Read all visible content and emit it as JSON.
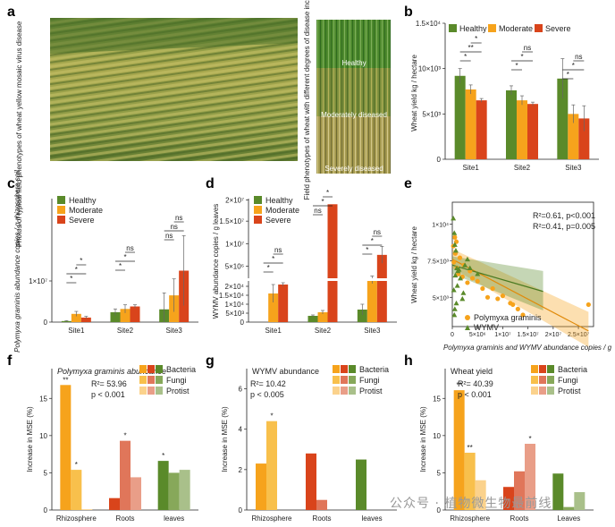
{
  "panel_labels": {
    "a": "a",
    "b": "b",
    "c": "c",
    "d": "d",
    "e": "e",
    "f": "f",
    "g": "g",
    "h": "h"
  },
  "panel_a": {
    "photo_caption": "Photos of typical field phenotypes of wheat yellow mosaic virus disease",
    "field_caption": "Field phenotypes of wheat with different degrees of disease incidence",
    "tags": [
      "Healthy",
      "Moderately diseased",
      "Severely diseased"
    ]
  },
  "colors": {
    "healthy": "#5a8a2a",
    "moderate": "#f6a31c",
    "severe": "#d9441b",
    "bacteria": [
      "#f6a31c",
      "#d9441b",
      "#5a8a2a"
    ],
    "fungi": [
      "#f8c04c",
      "#e0765a",
      "#87a85a"
    ],
    "protist": [
      "#fbd28c",
      "#e99e88",
      "#a9c08a"
    ],
    "pg_point": "#f6a31c",
    "wymv_point": "#5a8a2a"
  },
  "chart_data": [
    {
      "id": "b",
      "type": "bar",
      "categories": [
        "Site1",
        "Site2",
        "Site3"
      ],
      "series": [
        {
          "name": "Healthy",
          "values": [
            9.2,
            7.6,
            8.9
          ],
          "err": [
            0.8,
            0.5,
            2.2
          ]
        },
        {
          "name": "Moderate",
          "values": [
            7.7,
            6.5,
            5.0
          ],
          "err": [
            0.5,
            0.5,
            1.0
          ]
        },
        {
          "name": "Severe",
          "values": [
            6.5,
            6.1,
            4.5
          ],
          "err": [
            0.2,
            0.2,
            1.4
          ]
        }
      ],
      "ylabel": "Wheat yield kg / hectare",
      "yticks": [
        "0",
        "5×10³",
        "10×10³",
        "1.5×10⁴"
      ],
      "ylim": [
        0,
        15
      ],
      "sig": [
        {
          "site": 0,
          "pairs": [
            [
              "*"
            ],
            [
              "**"
            ],
            [
              "*"
            ]
          ]
        },
        {
          "site": 1,
          "pairs": [
            [
              "*"
            ],
            [
              "*"
            ],
            [
              "ns"
            ]
          ]
        },
        {
          "site": 2,
          "pairs": [
            [
              "*"
            ],
            [
              "*"
            ],
            [
              "ns"
            ]
          ]
        }
      ],
      "sig_labels": {
        "s1": [
          "*",
          "**",
          "*"
        ],
        "s2": [
          "*",
          "*",
          "ns"
        ],
        "s3": [
          "*",
          "*",
          "ns"
        ]
      }
    },
    {
      "id": "c",
      "type": "bar",
      "categories": [
        "Site1",
        "Site2",
        "Site3"
      ],
      "series": [
        {
          "name": "Healthy",
          "values": [
            0.25,
            2.4,
            3.1
          ],
          "err": [
            0.1,
            0.8,
            4.0
          ]
        },
        {
          "name": "Moderate",
          "values": [
            2.0,
            3.2,
            6.5
          ],
          "err": [
            0.6,
            1.0,
            4.0
          ]
        },
        {
          "name": "Severe",
          "values": [
            1.1,
            3.8,
            12.5
          ],
          "err": [
            0.3,
            0.4,
            8.5
          ]
        }
      ],
      "ylabel": "Polymyxa graminis abundance copies / g rhizosphere soil",
      "yticks": [
        "0",
        "1×10⁷"
      ],
      "ylim": [
        0,
        30
      ],
      "sig_labels": {
        "s1": [
          "*",
          "*",
          "*"
        ],
        "s2": [
          "*",
          "*",
          "ns"
        ],
        "s3": [
          "ns",
          "ns",
          "ns"
        ]
      }
    },
    {
      "id": "d",
      "type": "bar",
      "broken_axis": true,
      "categories": [
        "Site1",
        "Site2",
        "Site3"
      ],
      "series": [
        {
          "name": "Healthy",
          "values": [
            0,
            0.35,
            0.7
          ],
          "err": [
            0,
            0.05,
            0.3
          ]
        },
        {
          "name": "Moderate",
          "values": [
            1.6,
            0.55,
            2.3
          ],
          "err": [
            0.5,
            0.1,
            0.15
          ]
        },
        {
          "name": "Severe",
          "values": [
            2.1,
            5.0,
            3.2
          ],
          "err": [
            0.1,
            0.0,
            0.3
          ]
        }
      ],
      "ylabel": "WYMV abundance copies / g leaves",
      "yticks": [
        "0",
        "5×10³",
        "1×10⁴",
        "1.5×10⁴",
        "2×10⁴",
        "5×10⁶",
        "1×10⁷",
        "1.5×10⁷",
        "2×10⁷"
      ],
      "sig_labels": {
        "s1": [
          "*",
          "*",
          "ns"
        ],
        "s2": [
          "ns",
          "*",
          "*"
        ],
        "s3": [
          "*",
          "*",
          "ns"
        ]
      }
    },
    {
      "id": "e",
      "type": "scatter",
      "xlabel": "Polymyxa graminis and WYMV abundance copies / g",
      "ylabel": "Wheat yield kg / hectare",
      "xticks": [
        "0",
        "5×10⁶",
        "1×10⁷",
        "1.5×10⁷",
        "2×10⁷",
        "2.5×10⁷"
      ],
      "yticks": [
        "5×10³",
        "7.5×10³",
        "1×10⁴"
      ],
      "xlim": [
        0,
        28
      ],
      "ylim": [
        3.0,
        11.5
      ],
      "stats": [
        "R²=0.61, p<0.001",
        "R²=0.41, p=0.005"
      ],
      "series": [
        {
          "name": "Polymyxa graminis",
          "points": [
            [
              0.3,
              7.4
            ],
            [
              0.6,
              8.0
            ],
            [
              0.9,
              7.0
            ],
            [
              1.2,
              6.6
            ],
            [
              1.5,
              7.7
            ],
            [
              2.0,
              6.4
            ],
            [
              2.3,
              7.2
            ],
            [
              3.0,
              6.0
            ],
            [
              3.5,
              6.8
            ],
            [
              4.0,
              6.3
            ],
            [
              5.0,
              6.1
            ],
            [
              6.0,
              5.6
            ],
            [
              7.0,
              5.0
            ],
            [
              8.0,
              5.6
            ],
            [
              9.0,
              4.9
            ],
            [
              10.0,
              5.1
            ],
            [
              11.5,
              4.6
            ],
            [
              12.0,
              4.5
            ],
            [
              13.0,
              4.2
            ],
            [
              14.0,
              3.8
            ],
            [
              0.5,
              9.1
            ],
            [
              0.2,
              8.5
            ],
            [
              0.8,
              8.8
            ],
            [
              27.0,
              4.5
            ]
          ],
          "fit": [
            [
              0,
              7.6
            ],
            [
              27,
              2.7
            ]
          ]
        },
        {
          "name": "WYMV",
          "points": [
            [
              0.2,
              10.4
            ],
            [
              0.4,
              9.4
            ],
            [
              0.5,
              8.6
            ],
            [
              0.7,
              8.2
            ],
            [
              0.9,
              7.0
            ],
            [
              1.1,
              6.8
            ],
            [
              0.6,
              6.5
            ],
            [
              1.3,
              6.9
            ],
            [
              0.3,
              5.5
            ],
            [
              0.5,
              4.2
            ],
            [
              0.8,
              4.6
            ],
            [
              1.0,
              5.8
            ],
            [
              2.0,
              4.9
            ],
            [
              2.5,
              7.2
            ],
            [
              3.0,
              7.6
            ],
            [
              3.5,
              7.0
            ],
            [
              5.0,
              6.6
            ],
            [
              0.4,
              3.8
            ],
            [
              1.6,
              6.3
            ],
            [
              2.2,
              5.3
            ]
          ],
          "fit": [
            [
              0,
              7.2
            ],
            [
              18,
              5.4
            ]
          ]
        }
      ]
    },
    {
      "id": "f",
      "type": "bar",
      "title": "Polymyxa graminis abuncance",
      "categories": [
        "Rhizosphere",
        "Roots",
        "leaves"
      ],
      "series": [
        {
          "name": "Bacteria",
          "values": [
            16.8,
            1.6,
            6.6
          ]
        },
        {
          "name": "Fungi",
          "values": [
            5.4,
            9.3,
            5.0
          ]
        },
        {
          "name": "Protist",
          "values": [
            0.1,
            4.4,
            5.4
          ]
        }
      ],
      "ylabel": "Increase in MSE (%)",
      "yticks": [
        "0",
        "5",
        "10",
        "15"
      ],
      "ylim": [
        0,
        19
      ],
      "stats": [
        "R²= 53.96",
        "p  < 0.001"
      ],
      "stars": [
        [
          "**",
          0,
          0
        ],
        [
          "*",
          0,
          1
        ],
        [
          "*",
          1,
          1
        ],
        [
          "*",
          2,
          0
        ]
      ]
    },
    {
      "id": "g",
      "type": "bar",
      "title": "WYMV abundance",
      "categories": [
        "Rhizosphere",
        "Roots",
        "leaves"
      ],
      "series": [
        {
          "name": "Bacteria",
          "values": [
            2.3,
            2.8,
            2.5
          ]
        },
        {
          "name": "Fungi",
          "values": [
            4.4,
            0.5,
            0
          ]
        },
        {
          "name": "Protist",
          "values": [
            0,
            0,
            0
          ]
        }
      ],
      "ylabel": "Increase in MSE (%)",
      "yticks": [
        "0",
        "2",
        "4",
        "6"
      ],
      "ylim": [
        0,
        7
      ],
      "stats": [
        "R²= 10.42",
        "p  < 0.005"
      ],
      "stars": [
        [
          "*",
          0,
          1
        ]
      ]
    },
    {
      "id": "h",
      "type": "bar",
      "title": "Wheat yield",
      "categories": [
        "Rhizosphere",
        "Roots",
        "Leaves"
      ],
      "series": [
        {
          "name": "Bacteria",
          "values": [
            16.1,
            3.1,
            4.9
          ]
        },
        {
          "name": "Fungi",
          "values": [
            7.7,
            5.2,
            0.4
          ]
        },
        {
          "name": "Protist",
          "values": [
            4.0,
            8.9,
            2.4
          ]
        }
      ],
      "ylabel": "Increase in MSE (%)",
      "yticks": [
        "0",
        "5",
        "10",
        "15"
      ],
      "ylim": [
        0,
        19
      ],
      "stats": [
        "R²= 40.39",
        "p  < 0.001"
      ],
      "stars": [
        [
          "**",
          0,
          0
        ],
        [
          "**",
          0,
          1
        ],
        [
          "*",
          1,
          2
        ]
      ]
    }
  ],
  "watermark": "公众号 · 植物微生物最前线"
}
